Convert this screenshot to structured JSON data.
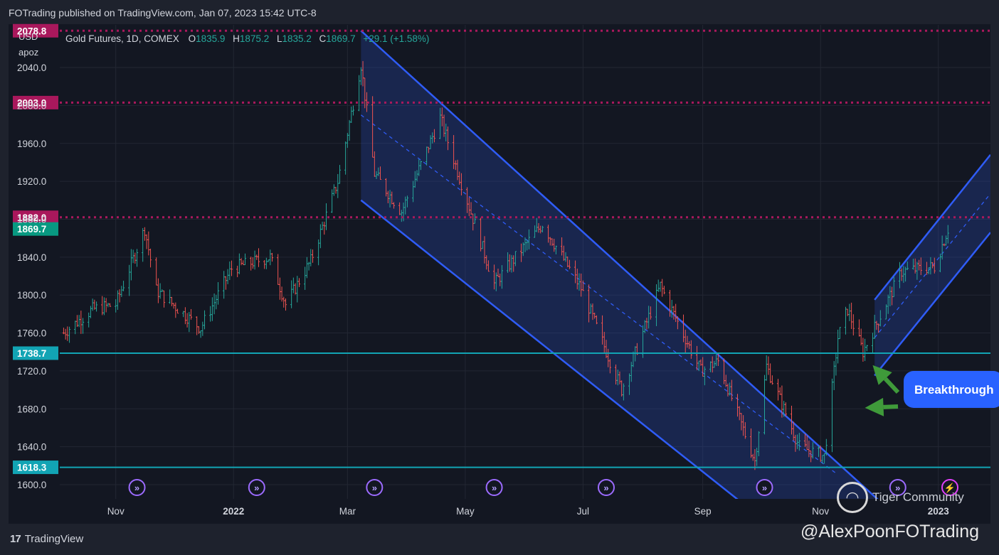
{
  "header": {
    "published": "FOTrading published on TradingView.com, Jan 07, 2023 15:42 UTC-8"
  },
  "footer": {
    "brand": "TradingView",
    "handle": "@AlexPoonFOTrading",
    "watermark": "Tiger Community"
  },
  "legend": {
    "symbol": "Gold Futures, 1D, COMEX",
    "o_label": "O",
    "o": "1835.9",
    "h_label": "H",
    "h": "1875.2",
    "l_label": "L",
    "l": "1835.2",
    "c_label": "C",
    "c": "1869.7",
    "change": "+29.1 (+1.58%)"
  },
  "chart_data": {
    "type": "candlestick",
    "currency": "USD",
    "unit": "apoz",
    "ylim": [
      1585,
      2085
    ],
    "y_ticks": [
      1600.0,
      1640.0,
      1680.0,
      1720.0,
      1760.0,
      1800.0,
      1840.0,
      1880.0,
      1920.0,
      1960.0,
      2000.0,
      2040.0
    ],
    "x_ticks": [
      {
        "label": "Nov",
        "date": "2021-11-01"
      },
      {
        "label": "2022",
        "date": "2022-01-01"
      },
      {
        "label": "Mar",
        "date": "2022-03-01"
      },
      {
        "label": "May",
        "date": "2022-05-01"
      },
      {
        "label": "Jul",
        "date": "2022-07-01"
      },
      {
        "label": "Sep",
        "date": "2022-09-01"
      },
      {
        "label": "Nov",
        "date": "2022-11-01"
      },
      {
        "label": "2023",
        "date": "2023-01-01"
      }
    ],
    "x_range": [
      "2021-10-03",
      "2023-01-28"
    ],
    "price_path": [
      [
        "2021-10-05",
        1760
      ],
      [
        "2021-10-20",
        1785
      ],
      [
        "2021-11-01",
        1790
      ],
      [
        "2021-11-16",
        1870
      ],
      [
        "2021-11-22",
        1805
      ],
      [
        "2021-12-15",
        1765
      ],
      [
        "2021-12-31",
        1828
      ],
      [
        "2022-01-20",
        1840
      ],
      [
        "2022-01-28",
        1790
      ],
      [
        "2022-02-10",
        1836
      ],
      [
        "2022-02-24",
        1920
      ],
      [
        "2022-03-08",
        2043
      ],
      [
        "2022-03-15",
        1928
      ],
      [
        "2022-03-29",
        1888
      ],
      [
        "2022-04-18",
        1987
      ],
      [
        "2022-05-16",
        1812
      ],
      [
        "2022-06-10",
        1875
      ],
      [
        "2022-06-30",
        1807
      ],
      [
        "2022-07-21",
        1700
      ],
      [
        "2022-08-10",
        1810
      ],
      [
        "2022-08-31",
        1720
      ],
      [
        "2022-09-09",
        1730
      ],
      [
        "2022-09-28",
        1625
      ],
      [
        "2022-10-04",
        1725
      ],
      [
        "2022-10-21",
        1640
      ],
      [
        "2022-11-03",
        1630
      ],
      [
        "2022-11-10",
        1755
      ],
      [
        "2022-11-15",
        1785
      ],
      [
        "2022-11-23",
        1740
      ],
      [
        "2022-12-13",
        1825
      ],
      [
        "2022-12-30",
        1830
      ],
      [
        "2023-01-06",
        1869.7
      ]
    ],
    "horizontal_levels": [
      {
        "label": "2078.8",
        "value": 2078.8,
        "style": "dotted",
        "color": "#a9185c"
      },
      {
        "label": "2003.0",
        "value": 2003.0,
        "style": "dotted",
        "color": "#a9185c"
      },
      {
        "label": "1882.0",
        "value": 1882.0,
        "style": "dotted",
        "color": "#a9185c"
      },
      {
        "label": "1738.7",
        "value": 1738.7,
        "style": "solid",
        "color": "#12a4b4"
      },
      {
        "label": "1618.3",
        "value": 1618.3,
        "style": "solid",
        "color": "#12a4b4"
      }
    ],
    "last_price": {
      "label": "1869.7",
      "value": 1869.7,
      "color": "#089981"
    },
    "down_channel": {
      "upper": [
        [
          "2022-03-08",
          2078.8
        ],
        [
          "2022-12-22",
          1545
        ]
      ],
      "lower": [
        [
          "2022-03-08",
          1900
        ],
        [
          "2022-10-06",
          1557
        ]
      ],
      "mid": [
        [
          "2022-03-08",
          1990
        ],
        [
          "2022-11-09",
          1612
        ]
      ]
    },
    "up_channel": {
      "upper": [
        [
          "2022-11-29",
          1795
        ],
        [
          "2023-01-28",
          1948
        ]
      ],
      "lower": [
        [
          "2022-11-29",
          1715
        ],
        [
          "2023-01-28",
          1866
        ]
      ],
      "mid": [
        [
          "2022-11-29",
          1755
        ],
        [
          "2023-01-28",
          1907
        ]
      ]
    },
    "annotations": [
      {
        "text": "Breakthrough",
        "arrows_to": [
          [
            "2022-11-28",
            1726
          ],
          [
            "2022-11-24",
            1681
          ]
        ]
      }
    ],
    "event_markers": [
      "2021-11-12",
      "2022-01-13",
      "2022-03-15",
      "2022-05-16",
      "2022-07-13",
      "2022-10-03",
      "2022-12-11",
      "2023-01-07"
    ],
    "colors": {
      "up": "#26a69a",
      "down": "#ef5350",
      "channel": "#2f5cf6",
      "channel_fill": "rgba(40,70,170,0.32)",
      "background": "#131722",
      "grid": "#232733"
    }
  }
}
